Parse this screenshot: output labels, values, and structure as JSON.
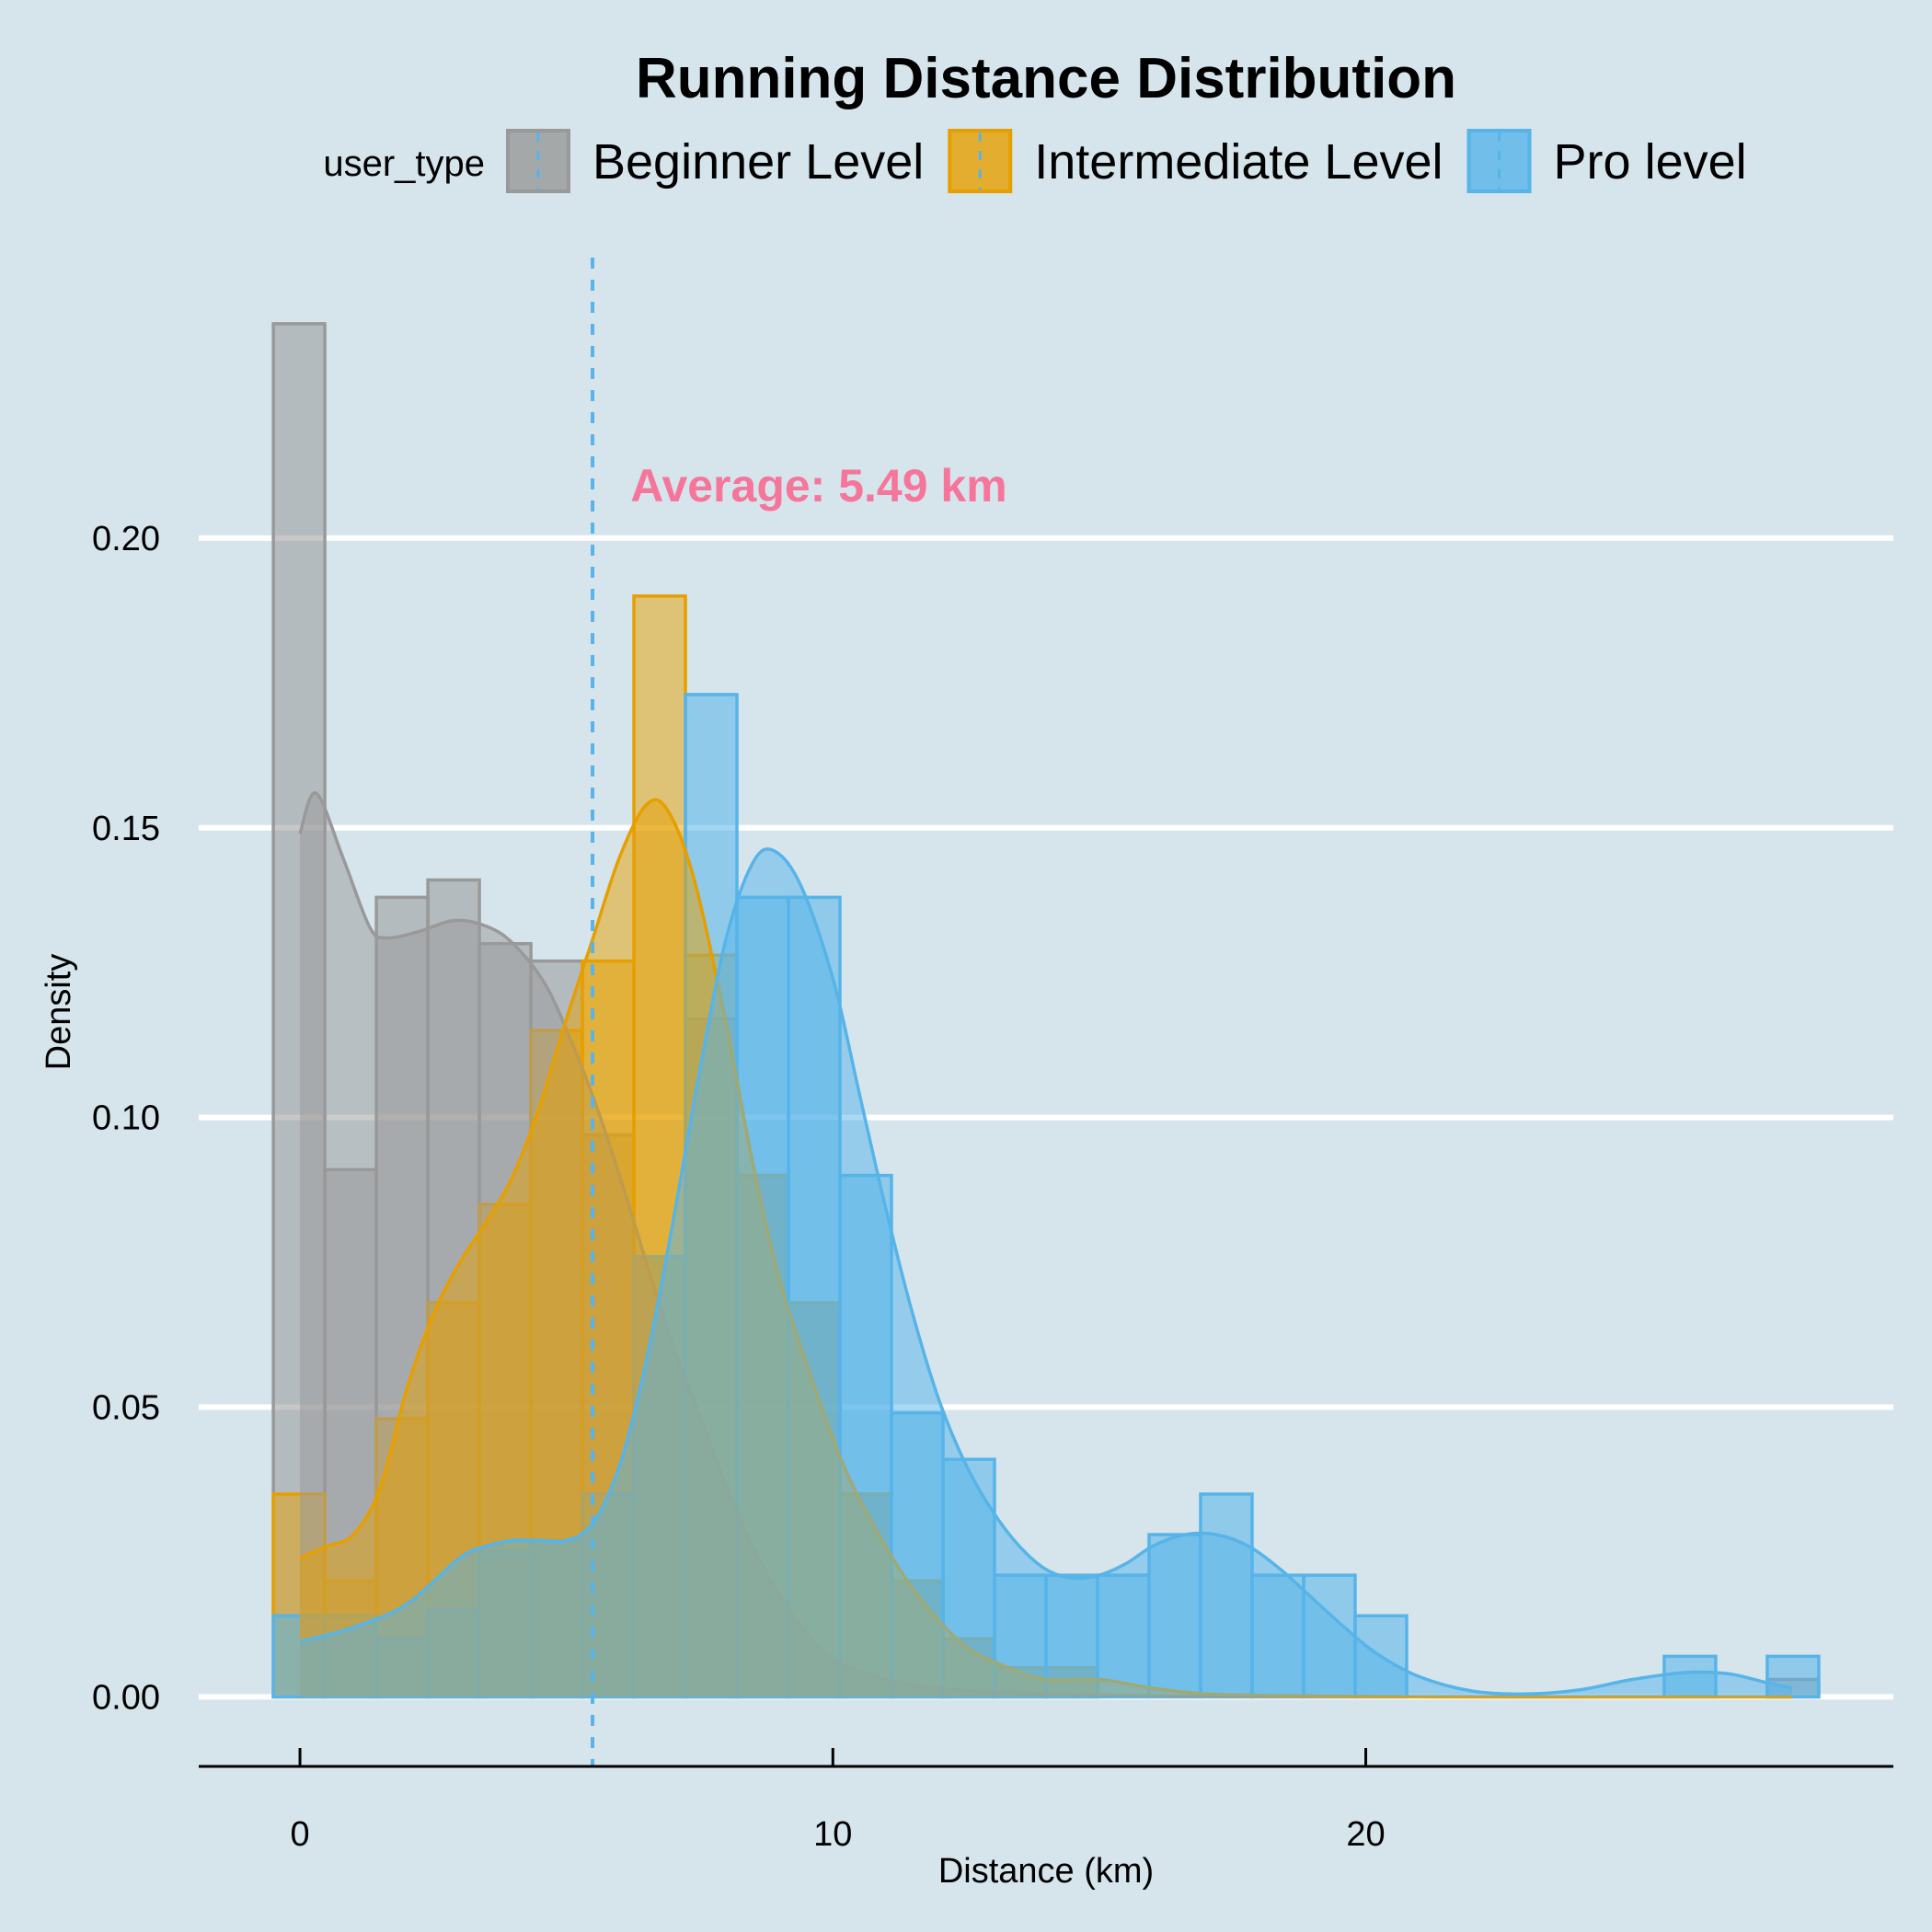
{
  "chart_data": {
    "type": "histogram",
    "title": "Running Distance Distribution",
    "xlabel": "Distance (km)",
    "ylabel": "Density",
    "xlim": [
      -1.9,
      29.9
    ],
    "ylim": [
      -0.012,
      0.25
    ],
    "x_ticks": [
      0,
      10,
      20
    ],
    "y_ticks": [
      0.0,
      0.05,
      0.1,
      0.15,
      0.2
    ],
    "y_tick_labels": [
      "0.00",
      "0.05",
      "0.10",
      "0.15",
      "0.20"
    ],
    "grid": "horizontal",
    "legend": {
      "title": "user_type",
      "position": "top"
    },
    "bin_edges": [
      -0.5,
      0.4667,
      1.4333,
      2.4,
      3.3667,
      4.3333,
      5.3,
      6.2667,
      7.2333,
      8.2,
      9.1667,
      10.1333,
      11.1,
      12.0667,
      13.0333,
      14.0,
      14.9667,
      15.9333,
      16.9,
      17.8667,
      18.8333,
      19.8,
      20.7667,
      21.7333,
      22.7,
      23.6667,
      24.6333,
      25.6,
      26.5667,
      27.5333,
      28.5
    ],
    "series": [
      {
        "name": "Beginner Level",
        "fill": "#999999",
        "fill_opacity": 0.55,
        "stroke": "#999999",
        "density": [
          0.237,
          0.091,
          0.138,
          0.141,
          0.13,
          0.127,
          0.097,
          0.076,
          0.117,
          0.09,
          0.068,
          0.035,
          0.02,
          0.01,
          0.005,
          0.005,
          0.0,
          0.0,
          0.0,
          0.0,
          0.0,
          0.0,
          0.0,
          0.0,
          0.0,
          0.0,
          0.0,
          0.0,
          0.0,
          0.003
        ],
        "kde": [
          [
            0.0,
            0.149
          ],
          [
            0.3,
            0.156
          ],
          [
            0.8,
            0.145
          ],
          [
            1.3,
            0.133
          ],
          [
            1.6,
            0.131
          ],
          [
            2.2,
            0.132
          ],
          [
            2.9,
            0.134
          ],
          [
            3.5,
            0.133
          ],
          [
            4.0,
            0.13
          ],
          [
            4.6,
            0.123
          ],
          [
            5.1,
            0.113
          ],
          [
            5.6,
            0.101
          ],
          [
            6.1,
            0.087
          ],
          [
            6.6,
            0.072
          ],
          [
            7.1,
            0.058
          ],
          [
            7.6,
            0.046
          ],
          [
            8.1,
            0.034
          ],
          [
            8.6,
            0.024
          ],
          [
            9.1,
            0.016
          ],
          [
            9.6,
            0.01
          ],
          [
            10.1,
            0.006
          ],
          [
            11.0,
            0.003
          ],
          [
            12.0,
            0.0015
          ],
          [
            13.0,
            0.0008
          ],
          [
            14.5,
            0.0004
          ],
          [
            16.0,
            0.0002
          ],
          [
            18.0,
            0.0001
          ],
          [
            22.0,
            0.0
          ],
          [
            26.0,
            0.0
          ],
          [
            28.0,
            0.0
          ]
        ]
      },
      {
        "name": "Intermediate Level",
        "fill": "#E69F00",
        "fill_opacity": 0.5,
        "stroke": "#E69F00",
        "density": [
          0.035,
          0.02,
          0.048,
          0.068,
          0.085,
          0.115,
          0.127,
          0.19,
          0.128,
          0.09,
          0.068,
          0.035,
          0.02,
          0.01,
          0.005,
          0.005,
          0.0,
          0.0,
          0.0,
          0.0,
          0.0,
          0.0,
          0.0,
          0.0,
          0.0,
          0.0,
          0.0,
          0.0,
          0.0,
          0.0
        ],
        "kde": [
          [
            0.0,
            0.024
          ],
          [
            0.5,
            0.026
          ],
          [
            1.0,
            0.028
          ],
          [
            1.5,
            0.036
          ],
          [
            2.0,
            0.053
          ],
          [
            2.5,
            0.066
          ],
          [
            3.0,
            0.075
          ],
          [
            3.5,
            0.082
          ],
          [
            4.0,
            0.09
          ],
          [
            4.5,
            0.102
          ],
          [
            5.0,
            0.117
          ],
          [
            5.5,
            0.131
          ],
          [
            6.0,
            0.145
          ],
          [
            6.5,
            0.154
          ],
          [
            6.9,
            0.153
          ],
          [
            7.4,
            0.141
          ],
          [
            8.0,
            0.116
          ],
          [
            8.5,
            0.092
          ],
          [
            9.0,
            0.072
          ],
          [
            9.6,
            0.055
          ],
          [
            10.2,
            0.04
          ],
          [
            10.8,
            0.029
          ],
          [
            11.4,
            0.02
          ],
          [
            12.0,
            0.013
          ],
          [
            12.6,
            0.008
          ],
          [
            13.3,
            0.005
          ],
          [
            14.0,
            0.003
          ],
          [
            15.0,
            0.003
          ],
          [
            16.0,
            0.0015
          ],
          [
            17.0,
            0.0005
          ],
          [
            18.5,
            0.0002
          ],
          [
            21.0,
            0.0
          ],
          [
            25.0,
            0.0
          ],
          [
            28.0,
            0.0
          ]
        ]
      },
      {
        "name": "Pro level",
        "fill": "#56B4E9",
        "fill_opacity": 0.55,
        "stroke": "#56B4E9",
        "density": [
          0.014,
          0.014,
          0.01,
          0.015,
          0.025,
          0.027,
          0.035,
          0.076,
          0.173,
          0.138,
          0.138,
          0.09,
          0.049,
          0.041,
          0.021,
          0.021,
          0.021,
          0.028,
          0.035,
          0.021,
          0.021,
          0.014,
          0.0,
          0.0,
          0.0,
          0.0,
          0.0,
          0.007,
          0.0,
          0.007
        ],
        "kde": [
          [
            0.0,
            0.0095
          ],
          [
            1.0,
            0.012
          ],
          [
            2.0,
            0.016
          ],
          [
            3.0,
            0.024
          ],
          [
            3.5,
            0.026
          ],
          [
            4.0,
            0.027
          ],
          [
            4.5,
            0.027
          ],
          [
            5.0,
            0.027
          ],
          [
            5.5,
            0.03
          ],
          [
            6.0,
            0.04
          ],
          [
            6.5,
            0.058
          ],
          [
            7.0,
            0.082
          ],
          [
            7.5,
            0.108
          ],
          [
            8.0,
            0.131
          ],
          [
            8.5,
            0.144
          ],
          [
            8.9,
            0.146
          ],
          [
            9.4,
            0.14
          ],
          [
            10.0,
            0.124
          ],
          [
            10.5,
            0.104
          ],
          [
            11.0,
            0.084
          ],
          [
            11.5,
            0.066
          ],
          [
            12.0,
            0.051
          ],
          [
            12.5,
            0.04
          ],
          [
            13.0,
            0.032
          ],
          [
            13.5,
            0.026
          ],
          [
            14.0,
            0.022
          ],
          [
            14.5,
            0.0205
          ],
          [
            15.0,
            0.021
          ],
          [
            15.5,
            0.023
          ],
          [
            16.0,
            0.026
          ],
          [
            16.6,
            0.028
          ],
          [
            17.2,
            0.028
          ],
          [
            17.8,
            0.026
          ],
          [
            18.4,
            0.022
          ],
          [
            19.0,
            0.017
          ],
          [
            19.6,
            0.012
          ],
          [
            20.2,
            0.0075
          ],
          [
            21.0,
            0.0035
          ],
          [
            22.0,
            0.001
          ],
          [
            23.0,
            0.0005
          ],
          [
            24.0,
            0.0012
          ],
          [
            25.0,
            0.003
          ],
          [
            26.0,
            0.0042
          ],
          [
            26.8,
            0.004
          ],
          [
            27.5,
            0.0025
          ],
          [
            28.0,
            0.0015
          ]
        ]
      }
    ],
    "reference_line": {
      "x": 5.49,
      "color": "#56B4E9",
      "dash": true
    },
    "annotation": {
      "text": "Average: 5.49 km",
      "x": 6.2,
      "y": 0.209,
      "color": "#F5769A"
    }
  }
}
